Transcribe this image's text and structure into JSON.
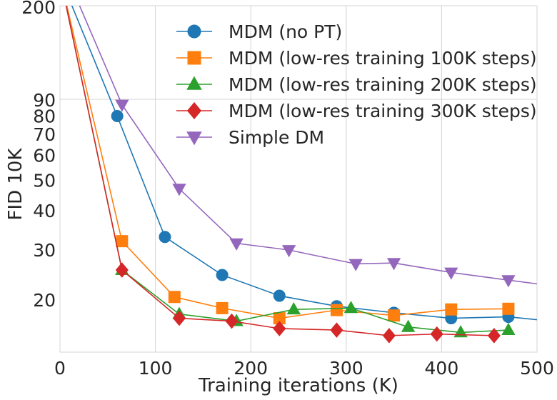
{
  "chart_data": {
    "type": "line",
    "title": "",
    "xlabel": "Training iterations (K)",
    "ylabel": "FID 10K",
    "xlim": [
      0,
      500
    ],
    "ylim": [
      13,
      200
    ],
    "yscale": "log",
    "grid": true,
    "x_ticks": [
      0,
      100,
      200,
      300,
      400,
      500
    ],
    "y_ticks": [
      20,
      30,
      40,
      50,
      60,
      70,
      80,
      90,
      200
    ],
    "legend_position": "top-center",
    "series": [
      {
        "name": "MDM (no PT)",
        "color": "#1f77b4",
        "marker": "circle",
        "x": [
          0,
          60,
          110,
          170,
          230,
          290,
          350,
          410,
          470,
          500
        ],
        "y": [
          260,
          80,
          33,
          24.5,
          20.7,
          19,
          18,
          17.2,
          17.4,
          17
        ],
        "markers_shown": [
          false,
          true,
          true,
          true,
          true,
          true,
          true,
          true,
          true,
          false
        ]
      },
      {
        "name": "MDM (low-res training 100K steps)",
        "color": "#ff7f0e",
        "marker": "square",
        "x": [
          0,
          65,
          120,
          170,
          230,
          290,
          350,
          410,
          470
        ],
        "y": [
          260,
          32,
          20.5,
          18.7,
          17.2,
          18.4,
          17.6,
          18.5,
          18.6
        ],
        "markers_shown": [
          false,
          true,
          true,
          true,
          true,
          true,
          true,
          true,
          true
        ]
      },
      {
        "name": "MDM (low-res training 200K steps)",
        "color": "#2ca02c",
        "marker": "triangle-up",
        "x": [
          0,
          65,
          125,
          185,
          245,
          305,
          365,
          420,
          470
        ],
        "y": [
          260,
          25.5,
          17.8,
          16.8,
          18.5,
          18.7,
          16,
          15.3,
          15.6
        ],
        "markers_shown": [
          false,
          true,
          true,
          true,
          true,
          true,
          true,
          true,
          true
        ]
      },
      {
        "name": "MDM (low-res training 300K steps)",
        "color": "#d62728",
        "marker": "diamond",
        "x": [
          0,
          65,
          125,
          180,
          230,
          290,
          345,
          395,
          455
        ],
        "y": [
          260,
          25.5,
          17.2,
          16.8,
          15.8,
          15.6,
          14.9,
          15.1,
          14.9
        ],
        "markers_shown": [
          false,
          true,
          true,
          true,
          true,
          true,
          true,
          true,
          true
        ]
      },
      {
        "name": "Simple DM",
        "color": "#9467bd",
        "marker": "triangle-down",
        "x": [
          0,
          65,
          125,
          185,
          240,
          310,
          350,
          410,
          470,
          500
        ],
        "y": [
          300,
          87,
          47,
          31.5,
          30,
          26.8,
          27,
          25,
          23.5,
          22.8
        ],
        "markers_shown": [
          false,
          true,
          true,
          true,
          true,
          true,
          true,
          true,
          true,
          false
        ]
      }
    ]
  }
}
